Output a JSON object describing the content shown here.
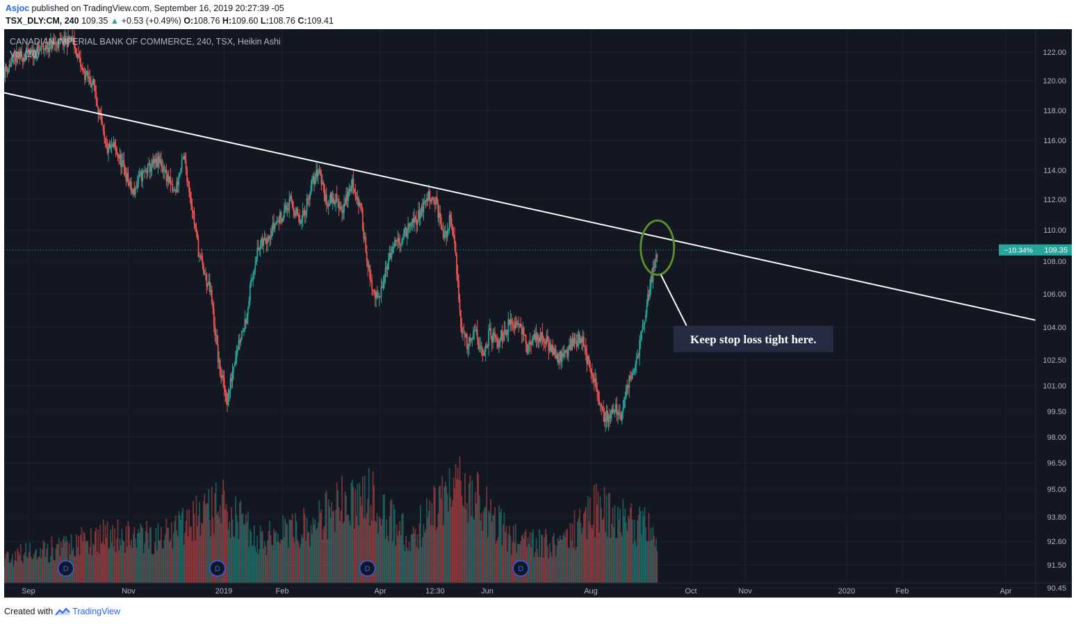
{
  "header": {
    "publisher": "Asjoc",
    "published_text": "published on TradingView.com, September 16, 2019 20:27:39 -05",
    "symbol": "TSX_DLY:CM, 240",
    "last": "109.35",
    "change_arrow": "▲",
    "change": "+0.53 (+0.49%)",
    "o_label": "O:",
    "o_value": "108.76",
    "h_label": "H:",
    "h_value": "109.60",
    "l_label": "L:",
    "l_value": "108.76",
    "c_label": "C:",
    "c_value": "109.41"
  },
  "legend": {
    "title": "CANADIAN IMPERIAL BANK OF COMMERCE, 240, TSX, Heikin Ashi",
    "volume": "Vol (20)"
  },
  "price_tag": {
    "percent": "−10.34%",
    "value": "109.35"
  },
  "annotation": {
    "text": "Keep stop loss tight here."
  },
  "dividend_marker": "D",
  "footer": {
    "created_with": "Created with",
    "brand": "TradingView"
  },
  "colors": {
    "background": "#131722",
    "up": "#26a69a",
    "down": "#ef5350",
    "trendline": "#ffffff",
    "circle": "#5b8c2a",
    "axis_text": "#b2b5be",
    "price_tag": "#26a69a",
    "brand": "#2962ff"
  },
  "chart_data": {
    "type": "candlestick",
    "style": "Heikin Ashi",
    "x_axis": {
      "ticks": [
        "Sep",
        "Nov",
        "2019",
        "Feb",
        "Apr",
        "12:30",
        "Jun",
        "Aug",
        "Oct",
        "Nov",
        "2020",
        "Feb",
        "Apr"
      ],
      "range": [
        "2018-08-20",
        "2020-04-30"
      ]
    },
    "y_axis": {
      "ticks": [
        "122.00",
        "120.00",
        "118.00",
        "116.00",
        "114.00",
        "112.00",
        "110.00",
        "108.00",
        "106.00",
        "104.00",
        "102.50",
        "101.00",
        "99.50",
        "98.00",
        "96.50",
        "95.00",
        "93.80",
        "92.60",
        "91.50",
        "90.45"
      ],
      "scale": "log",
      "side": "right"
    },
    "price_path": [
      [
        "2018-08-20",
        121.5
      ],
      [
        "2018-08-27",
        122.5
      ],
      [
        "2018-09-06",
        122.8
      ],
      [
        "2018-09-18",
        123.5
      ],
      [
        "2018-09-30",
        123.8
      ],
      [
        "2018-10-06",
        121.5
      ],
      [
        "2018-10-13",
        120.5
      ],
      [
        "2018-10-20",
        116.0
      ],
      [
        "2018-10-25",
        116.2
      ],
      [
        "2018-10-30",
        115.0
      ],
      [
        "2018-11-05",
        113.0
      ],
      [
        "2018-11-10",
        114.2
      ],
      [
        "2018-11-17",
        115.0
      ],
      [
        "2018-11-22",
        115.2
      ],
      [
        "2018-11-30",
        113.0
      ],
      [
        "2018-12-06",
        115.5
      ],
      [
        "2018-12-11",
        112.0
      ],
      [
        "2018-12-15",
        109.0
      ],
      [
        "2018-12-19",
        107.5
      ],
      [
        "2018-12-22",
        106.5
      ],
      [
        "2018-12-27",
        102.0
      ],
      [
        "2019-01-01",
        100.0
      ],
      [
        "2019-01-06",
        103.0
      ],
      [
        "2019-01-12",
        105.0
      ],
      [
        "2019-01-18",
        109.0
      ],
      [
        "2019-01-26",
        110.5
      ],
      [
        "2019-02-02",
        111.5
      ],
      [
        "2019-02-08",
        112.5
      ],
      [
        "2019-02-14",
        111.0
      ],
      [
        "2019-02-20",
        113.5
      ],
      [
        "2019-02-25",
        114.8
      ],
      [
        "2019-03-01",
        112.5
      ],
      [
        "2019-03-06",
        112.8
      ],
      [
        "2019-03-11",
        112.0
      ],
      [
        "2019-03-17",
        113.8
      ],
      [
        "2019-03-22",
        112.0
      ],
      [
        "2019-03-28",
        107.0
      ],
      [
        "2019-04-02",
        106.0
      ],
      [
        "2019-04-05",
        108.0
      ],
      [
        "2019-04-11",
        109.5
      ],
      [
        "2019-04-18",
        110.5
      ],
      [
        "2019-04-25",
        111.5
      ],
      [
        "2019-05-02",
        113.0
      ],
      [
        "2019-05-06",
        112.5
      ],
      [
        "2019-05-11",
        110.0
      ],
      [
        "2019-05-15",
        111.5
      ],
      [
        "2019-05-18",
        109.0
      ],
      [
        "2019-05-21",
        104.5
      ],
      [
        "2019-05-25",
        103.5
      ],
      [
        "2019-05-29",
        104.5
      ],
      [
        "2019-06-03",
        102.5
      ],
      [
        "2019-06-07",
        104.0
      ],
      [
        "2019-06-12",
        103.5
      ],
      [
        "2019-06-18",
        104.5
      ],
      [
        "2019-06-25",
        105.0
      ],
      [
        "2019-06-30",
        103.0
      ],
      [
        "2019-07-05",
        104.0
      ],
      [
        "2019-07-12",
        103.5
      ],
      [
        "2019-07-20",
        102.5
      ],
      [
        "2019-07-27",
        103.5
      ],
      [
        "2019-08-02",
        103.8
      ],
      [
        "2019-08-06",
        102.0
      ],
      [
        "2019-08-11",
        100.5
      ],
      [
        "2019-08-15",
        99.0
      ],
      [
        "2019-08-20",
        99.5
      ],
      [
        "2019-08-25",
        99.2
      ],
      [
        "2019-08-29",
        101.0
      ],
      [
        "2019-09-04",
        102.5
      ],
      [
        "2019-09-10",
        106.0
      ],
      [
        "2019-09-16",
        109.4
      ]
    ],
    "volume_profile": [
      [
        "2018-08-20",
        0.2
      ],
      [
        "2018-09-30",
        0.3
      ],
      [
        "2018-10-20",
        0.4
      ],
      [
        "2018-11-20",
        0.35
      ],
      [
        "2018-12-15",
        0.55
      ],
      [
        "2018-12-30",
        0.6
      ],
      [
        "2019-01-20",
        0.35
      ],
      [
        "2019-02-20",
        0.45
      ],
      [
        "2019-03-25",
        0.75
      ],
      [
        "2019-04-20",
        0.35
      ],
      [
        "2019-05-20",
        0.8
      ],
      [
        "2019-06-20",
        0.35
      ],
      [
        "2019-07-20",
        0.3
      ],
      [
        "2019-08-10",
        0.6
      ],
      [
        "2019-09-16",
        0.4
      ]
    ],
    "dividend_dates": [
      "2018-09-26",
      "2018-12-26",
      "2019-03-26",
      "2019-06-26"
    ],
    "trendline": {
      "start": [
        "2018-08-20",
        120.0
      ],
      "end": [
        "2020-04-30",
        104.9
      ]
    },
    "annotations": [
      {
        "type": "ellipse",
        "date": "2019-09-16",
        "price": 109.5
      },
      {
        "type": "callout",
        "text_ref": "annotation.text",
        "date": "2019-10-01",
        "price": 104.0
      }
    ],
    "last_price_line": 109.35
  }
}
